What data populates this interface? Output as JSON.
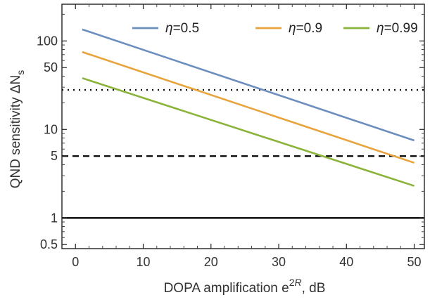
{
  "chart_data": {
    "type": "line",
    "xlabel": "DOPA amplification e",
    "xlabel_sup": "2",
    "xlabel_sup_it": "R",
    "xlabel_unit": ", dB",
    "ylabel": "QND sensitivity ΔN",
    "ylabel_sub": "s",
    "xlim": [
      -2,
      51.5
    ],
    "ylim": [
      0.45,
      260
    ],
    "yscale": "log",
    "xticks": [
      0,
      10,
      20,
      30,
      40,
      50
    ],
    "xtick_labels": [
      "0",
      "10",
      "20",
      "30",
      "40",
      "50"
    ],
    "yticks": [
      0.5,
      1,
      5,
      10,
      50,
      100
    ],
    "ytick_labels": [
      "0.5",
      "1",
      "5",
      "10",
      "50",
      "100"
    ],
    "legend_position": "top-right",
    "series": [
      {
        "name": "0.5",
        "symbol": "η",
        "color": "#6c8ebf",
        "x": [
          1,
          50
        ],
        "y": [
          135,
          7.5
        ]
      },
      {
        "name": "0.9",
        "symbol": "η",
        "color": "#e8a33c",
        "x": [
          1,
          50
        ],
        "y": [
          75,
          4.2
        ]
      },
      {
        "name": "0.99",
        "symbol": "η",
        "color": "#8ab33a",
        "x": [
          1,
          50
        ],
        "y": [
          38,
          2.3
        ]
      }
    ],
    "reference_lines": [
      {
        "y": 28,
        "style": "dotted",
        "color": "#000000"
      },
      {
        "y": 5,
        "style": "dashed",
        "color": "#000000"
      },
      {
        "y": 1,
        "style": "solid",
        "color": "#000000"
      }
    ]
  }
}
